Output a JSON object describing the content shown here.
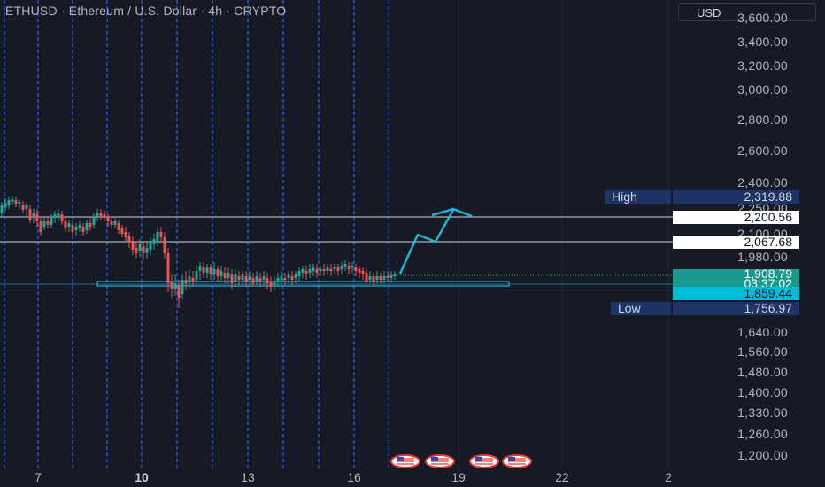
{
  "header": {
    "title": "ETHUSD · Ethereum / U.S. Dollar · 4h · CRYPTO",
    "currency": "USD"
  },
  "price_axis": {
    "ticks": [
      "3,600.00",
      "3,400.00",
      "3,200.00",
      "3,000.00",
      "2,800.00",
      "2,600.00",
      "2,400.00",
      "2,250.00",
      "2,100.00",
      "1,980.00",
      "1,860.00",
      "1,750.00",
      "1,640.00",
      "1,560.00",
      "1,480.00",
      "1,400.00",
      "1,330.00",
      "1,260.00",
      "1,200.00"
    ]
  },
  "time_axis": {
    "ticks": [
      {
        "label": "7",
        "bold": false
      },
      {
        "label": "10",
        "bold": true
      },
      {
        "label": "13",
        "bold": false
      },
      {
        "label": "16",
        "bold": false
      },
      {
        "label": "19",
        "bold": false
      },
      {
        "label": "22",
        "bold": false
      },
      {
        "label": "2",
        "bold": false
      }
    ]
  },
  "price_tags": {
    "high": {
      "name": "High",
      "value": "2,319.88"
    },
    "level_1": {
      "value": "2,200.56"
    },
    "level_2": {
      "value": "2,067.68"
    },
    "last_price": {
      "value": "1,908.79",
      "countdown": "03:37:02"
    },
    "support": {
      "value": "1,859.44"
    },
    "low": {
      "name": "Low",
      "value": "1,756.97"
    }
  },
  "colors": {
    "background": "#161a25",
    "up": "#26a69a",
    "down": "#ef5350",
    "projection": "#1fb6d8",
    "vertical_lines": "#2962ff",
    "tag_navy": "#1e3466"
  },
  "event_icons": [
    "us-flag-icon",
    "us-flag-icon",
    "us-flag-icon",
    "us-flag-icon"
  ]
}
